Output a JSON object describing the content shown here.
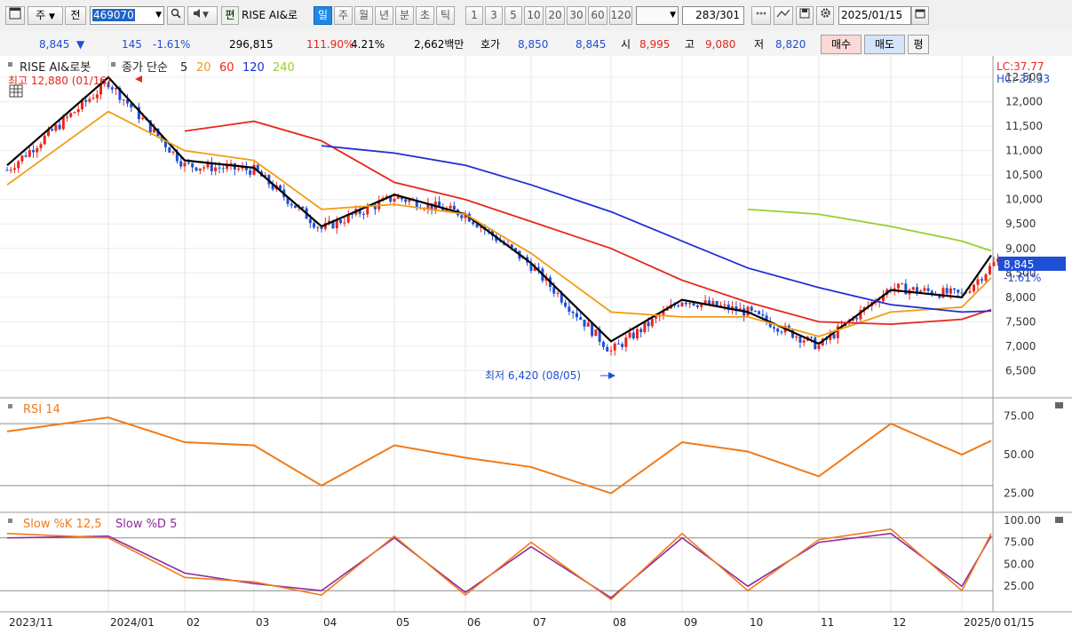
{
  "toolbar": {
    "market_select": "주",
    "prev_label": "전",
    "code": "469070",
    "edit_label": "편",
    "stock_name": "RISE AI&로",
    "periods": [
      "일",
      "주",
      "월",
      "년",
      "분",
      "초",
      "틱"
    ],
    "active_period": "일",
    "intervals": [
      "1",
      "3",
      "5",
      "10",
      "20",
      "30",
      "60",
      "120"
    ],
    "count_current": "283",
    "count_total": "/301",
    "date": "2025/01/15"
  },
  "quote": {
    "price": "8,845",
    "change_arrow": "▼",
    "change": "145",
    "change_pct": "-1.61%",
    "volume": "296,815",
    "volume_ratio": "111.90%",
    "turnover": "4.21%",
    "trade_amount": "2,662백만",
    "hoga_label": "호가",
    "ask": "8,850",
    "bid": "8,845",
    "open_label": "시",
    "open": "8,995",
    "high_label": "고",
    "high": "9,080",
    "low_label": "저",
    "low": "8,820",
    "buy_label": "매수",
    "sell_label": "매도",
    "eval_label": "평"
  },
  "price_panel": {
    "title": "RISE AI&로봇",
    "ma_label": "종가 단순",
    "ma_periods": [
      "5",
      "20",
      "60",
      "120",
      "240"
    ],
    "ma_colors": [
      "#000000",
      "#f39c12",
      "#e8261b",
      "#1f2fd6",
      "#9acd32"
    ],
    "high_note": "최고 12,880 (01/16)",
    "low_note": "최저 6,420 (08/05)",
    "lc": "LC:37.77",
    "hc": "HC:-31.33",
    "current_price": "8,845",
    "current_pct": "-1.61%",
    "y_ticks": [
      12500,
      12000,
      11500,
      11000,
      10500,
      10000,
      9500,
      9000,
      8500,
      8000,
      7500,
      7000,
      6500
    ],
    "y_range": [
      6000,
      12900
    ]
  },
  "rsi_panel": {
    "title": "RSI 14",
    "y_ticks": [
      "75.00",
      "50.00",
      "25.00"
    ],
    "levels": [
      70,
      30
    ]
  },
  "stoch_panel": {
    "title_k": "Slow %K 12,5",
    "title_d": "Slow %D 5",
    "y_ticks": [
      "100.00",
      "75.00",
      "50.00",
      "25.00"
    ],
    "levels": [
      80,
      20
    ]
  },
  "x_axis": {
    "labels": [
      "2023/11",
      "2024/01",
      "02",
      "03",
      "04",
      "05",
      "06",
      "07",
      "08",
      "09",
      "10",
      "11",
      "12",
      "2025/0",
      "01/15"
    ]
  },
  "colors": {
    "up": "#e8261b",
    "down": "#1f4fd6",
    "rsi": "#f07a18",
    "stoch_k": "#f07a18",
    "stoch_d": "#8e2a9e",
    "band_fill_high": "#f4b59a",
    "band_fill_low": "#9fd3ec"
  },
  "chart_data": {
    "type": "line",
    "x": [
      "2023/11",
      "2024/01",
      "02",
      "03",
      "04",
      "05",
      "06",
      "07",
      "08",
      "09",
      "10",
      "11",
      "12",
      "2025/01",
      "01/15"
    ],
    "series": [
      {
        "name": "종가",
        "values": [
          10600,
          12400,
          10700,
          10600,
          9400,
          10050,
          9700,
          8650,
          6900,
          7950,
          7700,
          7000,
          8200,
          8050,
          8845
        ]
      },
      {
        "name": "5",
        "values": [
          10700,
          12500,
          10800,
          10650,
          9450,
          10100,
          9700,
          8700,
          7100,
          7950,
          7700,
          7050,
          8150,
          8000,
          8860
        ]
      },
      {
        "name": "20",
        "values": [
          10300,
          11800,
          11000,
          10800,
          9800,
          9900,
          9700,
          8900,
          7700,
          7600,
          7600,
          7200,
          7700,
          7800,
          8400
        ]
      },
      {
        "name": "60",
        "values": [
          null,
          null,
          11400,
          11600,
          11200,
          10350,
          10000,
          9550,
          9000,
          8350,
          7900,
          7500,
          7450,
          7550,
          7750
        ]
      },
      {
        "name": "120",
        "values": [
          null,
          null,
          null,
          null,
          11100,
          10950,
          10700,
          10300,
          9750,
          9150,
          8600,
          8200,
          7850,
          7700,
          7720
        ]
      },
      {
        "name": "240",
        "values": [
          null,
          null,
          null,
          null,
          null,
          null,
          null,
          null,
          null,
          null,
          9800,
          9700,
          9450,
          9150,
          8950
        ]
      }
    ],
    "rsi": [
      65,
      74,
      58,
      56,
      30,
      56,
      48,
      42,
      25,
      58,
      52,
      36,
      70,
      50,
      59
    ],
    "stoch_k": [
      85,
      80,
      35,
      30,
      15,
      82,
      15,
      75,
      10,
      85,
      20,
      78,
      90,
      20,
      85
    ],
    "stoch_d": [
      80,
      82,
      40,
      28,
      20,
      80,
      18,
      70,
      12,
      80,
      25,
      75,
      85,
      25,
      82
    ],
    "ylim": [
      6000,
      12900
    ]
  }
}
